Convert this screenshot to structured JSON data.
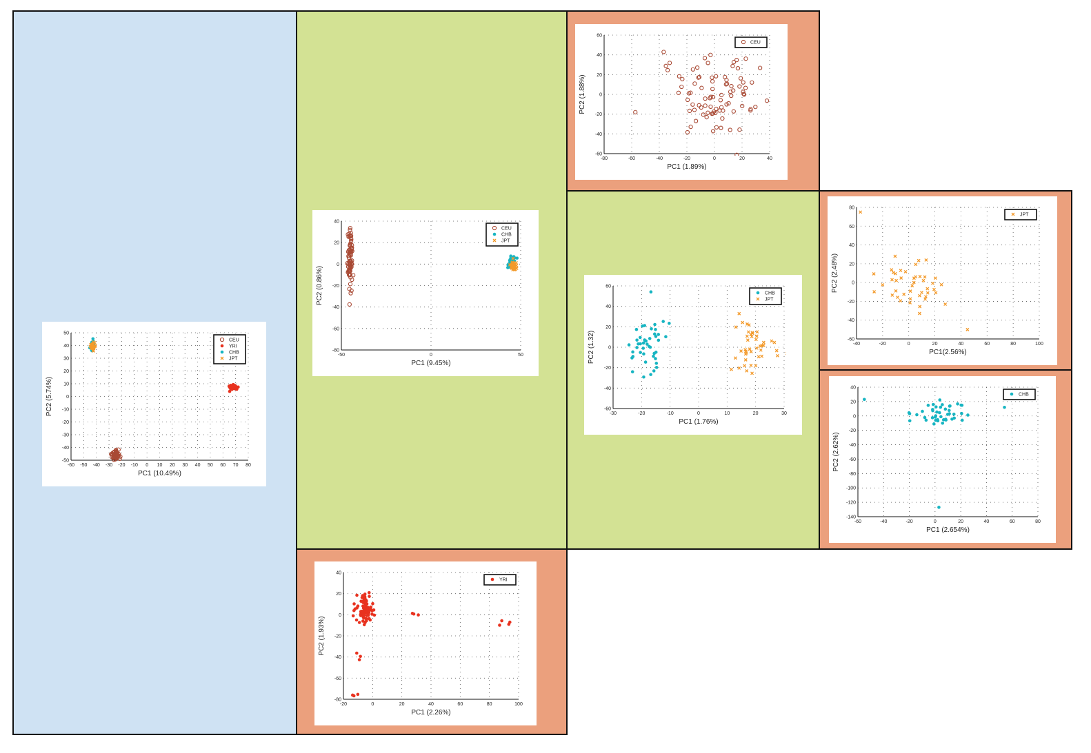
{
  "colors": {
    "panel_blue": "#cfe2f3",
    "panel_green": "#d3e294",
    "panel_salmon": "#eba07d",
    "CEU": "#a94a35",
    "YRI": "#e8321f",
    "CHB": "#17b5c2",
    "JPT": "#f39a2b"
  },
  "chart_data": [
    {
      "id": "all",
      "type": "scatter",
      "xlabel": "PC1 (10.49%)",
      "ylabel": "PC2 (5.74%)",
      "xlim": [
        -60,
        80
      ],
      "ylim": [
        -50,
        50
      ],
      "xticks": [
        -60,
        -50,
        -40,
        -30,
        -20,
        -10,
        0,
        10,
        20,
        30,
        40,
        50,
        60,
        70,
        80
      ],
      "yticks": [
        -50,
        -40,
        -30,
        -20,
        -10,
        0,
        10,
        20,
        30,
        40,
        50
      ],
      "grid": true,
      "legend": "top-right",
      "series": [
        {
          "name": "CEU",
          "marker": "circle-open",
          "clusters": [
            {
              "cx": -25,
              "cy": -46,
              "sx": 1.5,
              "sy": 1.8,
              "n": 60
            }
          ]
        },
        {
          "name": "YRI",
          "marker": "dot",
          "clusters": [
            {
              "cx": 68,
              "cy": 7.5,
              "sx": 1.8,
              "sy": 1.0,
              "n": 60
            }
          ]
        },
        {
          "name": "CHB",
          "marker": "dot",
          "clusters": [
            {
              "cx": -43,
              "cy": 40,
              "sx": 0.8,
              "sy": 1.8,
              "n": 45
            }
          ]
        },
        {
          "name": "JPT",
          "marker": "x",
          "clusters": [
            {
              "cx": -43,
              "cy": 39,
              "sx": 0.8,
              "sy": 1.5,
              "n": 45
            }
          ]
        }
      ]
    },
    {
      "id": "ceu_vs_asn",
      "type": "scatter",
      "xlabel": "PC1 (9.45%)",
      "ylabel": "PC2 (0.86%)",
      "xlim": [
        -50,
        50
      ],
      "ylim": [
        -80,
        40
      ],
      "xticks": [
        -50,
        0,
        50
      ],
      "yticks": [
        -80,
        -60,
        -40,
        -20,
        0,
        20,
        40
      ],
      "grid": true,
      "legend": "top-right",
      "series": [
        {
          "name": "CEU",
          "marker": "circle-open",
          "clusters": [
            {
              "cx": -45,
              "cy": 5,
              "sx": 0.7,
              "sy": 18,
              "n": 85
            }
          ]
        },
        {
          "name": "CHB",
          "marker": "dot",
          "clusters": [
            {
              "cx": 45,
              "cy": 2,
              "sx": 1.0,
              "sy": 2.5,
              "n": 45
            }
          ]
        },
        {
          "name": "JPT",
          "marker": "x",
          "clusters": [
            {
              "cx": 46,
              "cy": -1,
              "sx": 1.0,
              "sy": 2.5,
              "n": 45
            }
          ]
        }
      ]
    },
    {
      "id": "ceu",
      "type": "scatter",
      "xlabel": "PC1 (1.89%)",
      "ylabel": "PC2 (1.88%)",
      "xlim": [
        -80,
        40
      ],
      "ylim": [
        -60,
        60
      ],
      "xticks": [
        -80,
        -60,
        -40,
        -20,
        0,
        20,
        40
      ],
      "yticks": [
        -60,
        -40,
        -20,
        0,
        20,
        40,
        60
      ],
      "grid": true,
      "legend": "top-right",
      "series": [
        {
          "name": "CEU",
          "marker": "circle-open",
          "clusters": [
            {
              "cx": 0,
              "cy": 0,
              "sx": 18,
              "sy": 20,
              "n": 90
            }
          ]
        }
      ]
    },
    {
      "id": "yri",
      "type": "scatter",
      "xlabel": "PC1 (2.26%)",
      "ylabel": "PC2 (1.93%)",
      "xlim": [
        -20,
        100
      ],
      "ylim": [
        -80,
        40
      ],
      "xticks": [
        -20,
        0,
        20,
        40,
        60,
        80,
        100
      ],
      "yticks": [
        -80,
        -60,
        -40,
        -20,
        0,
        20,
        40
      ],
      "grid": true,
      "legend": "top-right",
      "series": [
        {
          "name": "YRI",
          "marker": "dot",
          "clusters": [
            {
              "cx": -6,
              "cy": 5,
              "sx": 3,
              "sy": 8,
              "n": 90
            },
            {
              "cx": 30,
              "cy": 0,
              "sx": 1.5,
              "sy": 2,
              "n": 3
            },
            {
              "cx": 92,
              "cy": -8,
              "sx": 3,
              "sy": 2,
              "n": 4
            },
            {
              "cx": -10,
              "cy": -40,
              "sx": 1,
              "sy": 2,
              "n": 3
            },
            {
              "cx": -12,
              "cy": -76,
              "sx": 1,
              "sy": 2,
              "n": 3
            }
          ]
        }
      ]
    },
    {
      "id": "chb_vs_jpt",
      "type": "scatter",
      "xlabel": "PC1 (1.76%)",
      "ylabel": "PC2 (1.32)",
      "xlim": [
        -30,
        30
      ],
      "ylim": [
        -60,
        60
      ],
      "xticks": [
        -30,
        -20,
        -10,
        0,
        10,
        20,
        30
      ],
      "yticks": [
        -60,
        -40,
        -20,
        0,
        20,
        40,
        60
      ],
      "grid": true,
      "legend": "top-right",
      "series": [
        {
          "name": "CHB",
          "marker": "dot",
          "clusters": [
            {
              "cx": -18,
              "cy": 3,
              "sx": 3.5,
              "sy": 20,
              "n": 45
            }
          ]
        },
        {
          "name": "JPT",
          "marker": "x",
          "clusters": [
            {
              "cx": 19,
              "cy": 0,
              "sx": 4.5,
              "sy": 12,
              "n": 45
            }
          ]
        }
      ]
    },
    {
      "id": "jpt",
      "type": "scatter",
      "xlabel": "PC1(2.56%)",
      "ylabel": "PC2 (2.48%)",
      "xlim": [
        -40,
        100
      ],
      "ylim": [
        -60,
        80
      ],
      "xticks": [
        -40,
        -20,
        0,
        20,
        40,
        60,
        80,
        100
      ],
      "yticks": [
        -60,
        -40,
        -20,
        0,
        20,
        40,
        60,
        80
      ],
      "grid": true,
      "legend": "top-right",
      "series": [
        {
          "name": "JPT",
          "marker": "x",
          "clusters": [
            {
              "cx": 0,
              "cy": -2,
              "sx": 12,
              "sy": 14,
              "n": 44
            },
            {
              "cx": -37,
              "cy": 75,
              "sx": 0.5,
              "sy": 0.5,
              "n": 1
            },
            {
              "cx": 45,
              "cy": -50,
              "sx": 0.5,
              "sy": 0.5,
              "n": 1
            }
          ]
        }
      ]
    },
    {
      "id": "chb",
      "type": "scatter",
      "xlabel": "PC1 (2.654%)",
      "ylabel": "PC2 (2.62%)",
      "xlim": [
        -60,
        80
      ],
      "ylim": [
        -140,
        40
      ],
      "xticks": [
        -60,
        -40,
        -20,
        0,
        20,
        40,
        60,
        80
      ],
      "yticks": [
        -140,
        -120,
        -100,
        -80,
        -60,
        -40,
        -20,
        0,
        20,
        40
      ],
      "grid": true,
      "legend": "top-right",
      "series": [
        {
          "name": "CHB",
          "marker": "dot",
          "clusters": [
            {
              "cx": 0,
              "cy": 5,
              "sx": 12,
              "sy": 8,
              "n": 44
            },
            {
              "cx": -55,
              "cy": 23,
              "sx": 0.5,
              "sy": 0.5,
              "n": 1
            },
            {
              "cx": 3,
              "cy": -127,
              "sx": 0.5,
              "sy": 0.5,
              "n": 1
            },
            {
              "cx": 54,
              "cy": 12,
              "sx": 0.5,
              "sy": 0.5,
              "n": 1
            }
          ]
        }
      ]
    }
  ]
}
